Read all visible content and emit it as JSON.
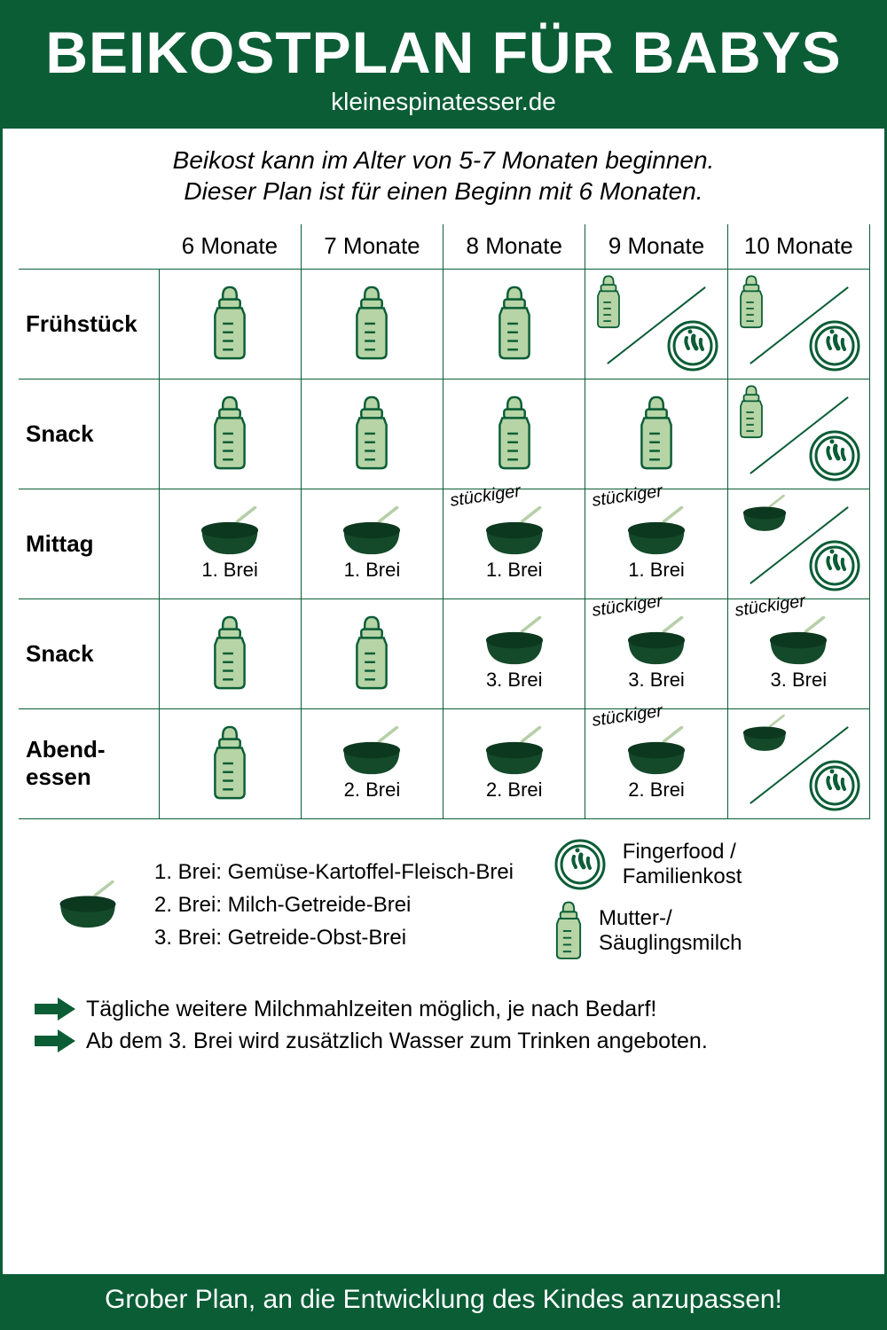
{
  "colors": {
    "brand": "#0b5d36",
    "bottle_fill": "#b6d4a5",
    "bowl_fill": "#144a2a",
    "bowl_rim": "#0c381f",
    "spoon": "#b6cfa8",
    "bg": "#ffffff",
    "text": "#000000",
    "white": "#ffffff"
  },
  "header": {
    "title": "BEIKOSTPLAN FÜR BABYS",
    "site": "kleinespinatesser.de"
  },
  "intro": {
    "line1": "Beikost kann im Alter von 5-7 Monaten beginnen.",
    "line2": "Dieser Plan ist für einen Beginn mit 6 Monaten."
  },
  "columns": [
    "6 Monate",
    "7 Monate",
    "8 Monate",
    "9 Monate",
    "10 Monate"
  ],
  "row_labels": {
    "r1": "Frühstück",
    "r2": "Snack",
    "r3": "Mittag",
    "r4": "Snack",
    "r5_a": "Abend-",
    "r5_b": "essen"
  },
  "note_text": "stückiger",
  "grid": {
    "r1": [
      {
        "type": "bottle"
      },
      {
        "type": "bottle"
      },
      {
        "type": "bottle"
      },
      {
        "type": "split"
      },
      {
        "type": "split"
      }
    ],
    "r2": [
      {
        "type": "bottle"
      },
      {
        "type": "bottle"
      },
      {
        "type": "bottle"
      },
      {
        "type": "bottle"
      },
      {
        "type": "split"
      }
    ],
    "r3": [
      {
        "type": "bowl",
        "caption": "1. Brei"
      },
      {
        "type": "bowl",
        "caption": "1. Brei"
      },
      {
        "type": "bowl",
        "caption": "1. Brei",
        "note": true
      },
      {
        "type": "bowl",
        "caption": "1. Brei",
        "note": true
      },
      {
        "type": "bowl_split"
      }
    ],
    "r4": [
      {
        "type": "bottle"
      },
      {
        "type": "bottle"
      },
      {
        "type": "bowl",
        "caption": "3. Brei"
      },
      {
        "type": "bowl",
        "caption": "3. Brei",
        "note": true
      },
      {
        "type": "bowl",
        "caption": "3. Brei",
        "note": true
      }
    ],
    "r5": [
      {
        "type": "bottle"
      },
      {
        "type": "bowl",
        "caption": "2. Brei"
      },
      {
        "type": "bowl",
        "caption": "2. Brei"
      },
      {
        "type": "bowl",
        "caption": "2. Brei",
        "note": true
      },
      {
        "type": "bowl_split"
      }
    ]
  },
  "legend": {
    "brei1": "1. Brei: Gemüse-Kartoffel-Fleisch-Brei",
    "brei2": "2. Brei: Milch-Getreide-Brei",
    "brei3": "3. Brei: Getreide-Obst-Brei",
    "finger_a": "Fingerfood /",
    "finger_b": "Familienkost",
    "milk_a": "Mutter-/",
    "milk_b": "Säuglingsmilch"
  },
  "tips": {
    "t1": "Tägliche weitere Milchmahlzeiten möglich, je nach Bedarf!",
    "t2": "Ab dem 3. Brei wird zusätzlich Wasser zum Trinken angeboten."
  },
  "footer": "Grober Plan, an die Entwicklung des Kindes anzupassen!",
  "icon_sizes": {
    "bottle_w": 56,
    "bottle_h": 86,
    "bowl_w": 92,
    "bowl_h": 56,
    "badge": 58,
    "small_bottle_w": 40,
    "small_bottle_h": 62,
    "legend_bowl_w": 78
  }
}
